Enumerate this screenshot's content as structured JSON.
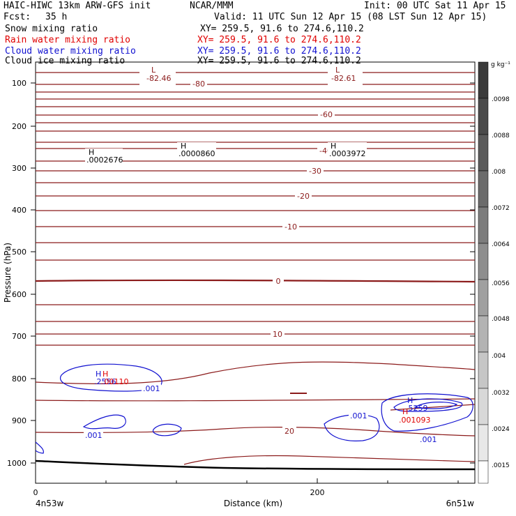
{
  "header": {
    "title_left": "HAIC-HIWC 13km ARW-GFS init",
    "center": "NCAR/MMM",
    "init": "Init: 00 UTC Sat 11 Apr 15",
    "fcst_label": "Fcst:",
    "fcst_value": "35 h",
    "valid": "Valid: 11 UTC Sun 12 Apr 15 (08 LST Sun 12 Apr 15)",
    "fields": [
      {
        "name": "Snow mixing ratio",
        "xy": "XY= 259.5, 91.6 to 274.6,110.2",
        "color": "#000000"
      },
      {
        "name": "Rain water mixing ratio",
        "xy": "XY= 259.5, 91.6 to 274.6,110.2",
        "color": "#e00000"
      },
      {
        "name": "Cloud water mixing ratio",
        "xy": "XY= 259.5, 91.6 to 274.6,110.2",
        "color": "#1010d0"
      },
      {
        "name": "Cloud ice mixing ratio",
        "xy": "XY= 259.5, 91.6 to 274.6,110.2",
        "color": "#000000"
      }
    ]
  },
  "chart_data": {
    "type": "cross-section contour",
    "ylabel": "Pressure (hPa)",
    "xlabel": "Distance (km)",
    "x_ticks": [
      0,
      200
    ],
    "x_range": [
      0,
      300
    ],
    "y_ticks": [
      100,
      200,
      300,
      400,
      500,
      600,
      700,
      800,
      900,
      1000
    ],
    "y_range": [
      50,
      1050
    ],
    "y_scale": "log-pressure",
    "left_endpoint": "4n53w",
    "right_endpoint": "6n51w",
    "colorbar": {
      "unit": "g kg⁻¹",
      "labels": [
        ".0098",
        ".0088",
        ".008",
        ".0072",
        ".0064",
        ".0056",
        ".0048",
        ".004",
        ".0032",
        ".0024",
        ".0015"
      ]
    },
    "temperature_contour_labels": [
      "-80",
      "-60",
      "-40",
      "-30",
      "-20",
      "-10",
      "0",
      "10",
      "20"
    ],
    "extrema": [
      {
        "type": "L",
        "value": "-82.46",
        "color": "#8b1a1a"
      },
      {
        "type": "L",
        "value": "-82.61",
        "color": "#8b1a1a"
      },
      {
        "type": "H",
        "value": ".0002676",
        "color": "#000000"
      },
      {
        "type": "H",
        "value": ".0000860",
        "color": "#000000"
      },
      {
        "type": "H",
        "value": ".0003972",
        "color": "#000000"
      },
      {
        "type": "H",
        "value": ".2556",
        "color": "#1010d0"
      },
      {
        "type": "H",
        "value": ".00110",
        "color": "#e00000"
      },
      {
        "type": "H",
        "value": ".5259",
        "color": "#1010d0"
      },
      {
        "type": "H",
        "value": ".001093",
        "color": "#e00000"
      }
    ],
    "cloud_water_contour_labels": [
      ".001",
      ".001",
      ".001",
      ".001"
    ]
  }
}
